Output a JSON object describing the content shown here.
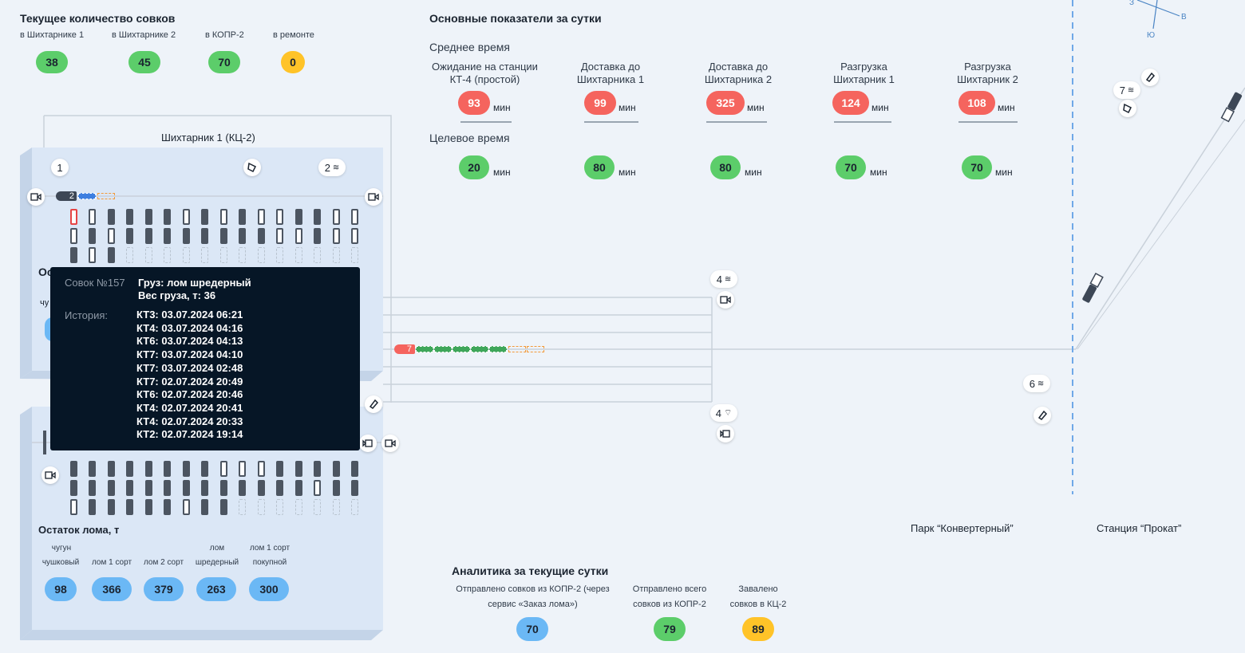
{
  "counts": {
    "title": "Текущее количество совков",
    "items": [
      {
        "label": "в Шихтарнике 1",
        "value": "38",
        "color": "green"
      },
      {
        "label": "в Шихтарнике 2",
        "value": "45",
        "color": "green"
      },
      {
        "label": "в КОПР-2",
        "value": "70",
        "color": "green"
      },
      {
        "label": "в ремонте",
        "value": "0",
        "color": "yellow"
      }
    ]
  },
  "daily": {
    "title": "Основные показатели за сутки",
    "avg_title": "Среднее время",
    "target_title": "Целевое время",
    "unit": "мин",
    "columns": [
      {
        "label": "Ожидание на станции КТ-4 (простой)",
        "avg": "93",
        "target": "20"
      },
      {
        "label": "Доставка до Шихтарника 1",
        "avg": "99",
        "target": "80"
      },
      {
        "label": "Доставка до Шихтарника 2",
        "avg": "325",
        "target": "80"
      },
      {
        "label": "Разгрузка Шихтарник 1",
        "avg": "124",
        "target": "70"
      },
      {
        "label": "Разгрузка Шихтарник 2",
        "avg": "108",
        "target": "70"
      }
    ]
  },
  "map": {
    "shed1_title": "Шихтарник 1 (КЦ-2)",
    "badge1": "1",
    "badge2": "2",
    "badge4a": "4",
    "badge4b": "4",
    "badge6": "6",
    "badge7": "7",
    "train1_num": "2",
    "train2_num": "7",
    "park_label": "Парк “Конвертерный”",
    "station_label": "Станция “Прокат”",
    "compass": {
      "n": "З",
      "e": "В",
      "s": "Ю"
    },
    "partial_left1": "Ос",
    "partial_left2": "чу"
  },
  "tooltip": {
    "car_label": "Совок №157",
    "cargo": "Груз: лом шредерный",
    "weight": "Вес груза, т: 36",
    "history_label": "История:",
    "history": [
      "КТ3: 03.07.2024 06:21",
      "КТ4: 03.07.2024 04:16",
      "КТ6: 03.07.2024 04:13",
      "КТ7: 03.07.2024 04:10",
      "КТ7: 03.07.2024 02:48",
      "КТ7: 02.07.2024 20:49",
      "КТ6: 02.07.2024 20:46",
      "КТ4: 02.07.2024 20:41",
      "КТ4: 02.07.2024 20:33",
      "КТ2: 02.07.2024 19:14"
    ]
  },
  "scrap": {
    "title": "Остаток лома, т",
    "items": [
      {
        "label1": "чугун",
        "label2": "чушковый",
        "value": "98"
      },
      {
        "label1": "",
        "label2": "лом 1 сорт",
        "value": "366"
      },
      {
        "label1": "",
        "label2": "лом 2 сорт",
        "value": "379"
      },
      {
        "label1": "лом",
        "label2": "шредерный",
        "value": "263"
      },
      {
        "label1": "лом 1 сорт",
        "label2": "покупной",
        "value": "300"
      }
    ]
  },
  "analytics": {
    "title": "Аналитика за текущие сутки",
    "items": [
      {
        "label": "Отправлено совков из КОПР-2 (через сервис «Заказ лома»)",
        "value": "70",
        "color": "blue"
      },
      {
        "label": "Отправлено всего совков из КОПР-2",
        "value": "79",
        "color": "green"
      },
      {
        "label": "Завалено совков в КЦ-2",
        "value": "89",
        "color": "yellow"
      }
    ]
  },
  "colors": {
    "green": "#5ccd6a",
    "red": "#f5645e",
    "yellow": "#ffc328",
    "blue": "#6bb8f5",
    "tooltip_bg": "#061626"
  }
}
